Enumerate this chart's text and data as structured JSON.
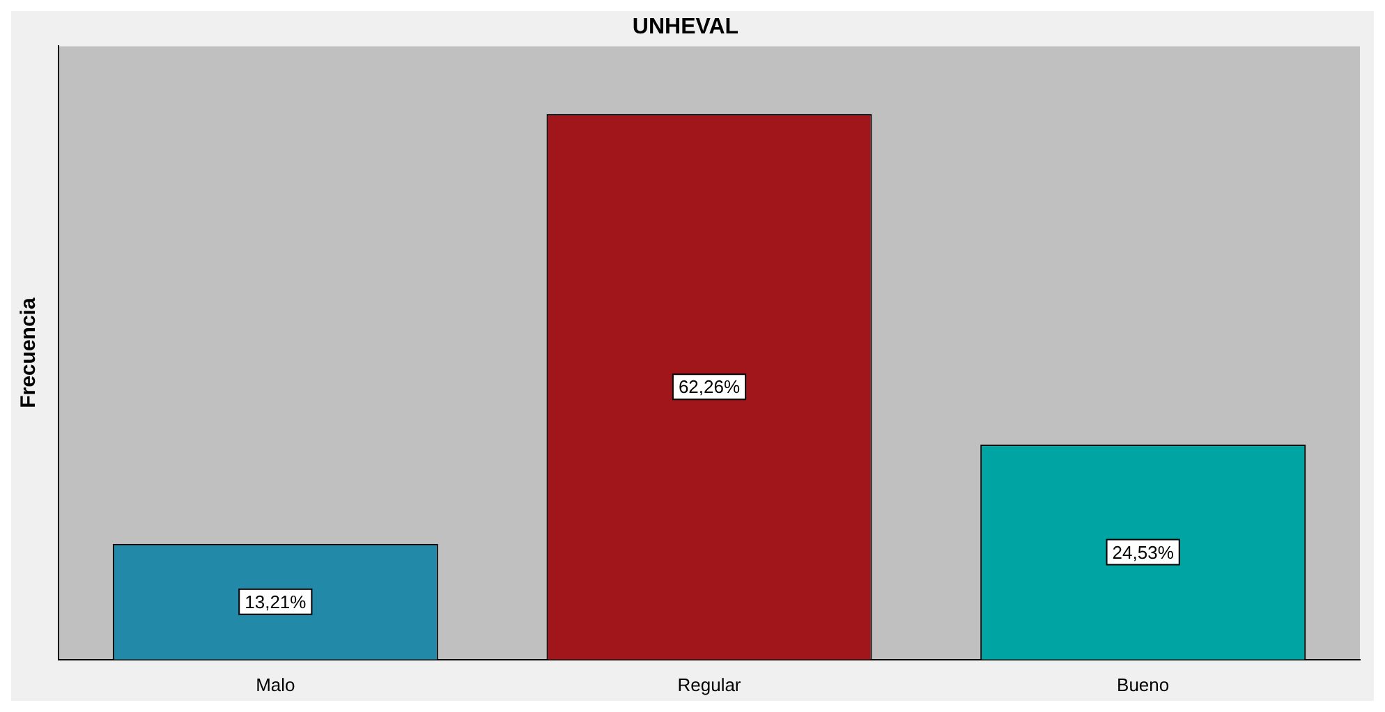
{
  "chart_data": {
    "type": "bar",
    "title": "UNHEVAL",
    "ylabel": "Frecuencia",
    "categories": [
      "Malo",
      "Regular",
      "Bueno"
    ],
    "values": [
      13.21,
      62.26,
      24.53
    ],
    "value_labels": [
      "13,21%",
      "62,26%",
      "24,53%"
    ],
    "colors": [
      "#2389a8",
      "#a0161a",
      "#00a5a3"
    ]
  }
}
